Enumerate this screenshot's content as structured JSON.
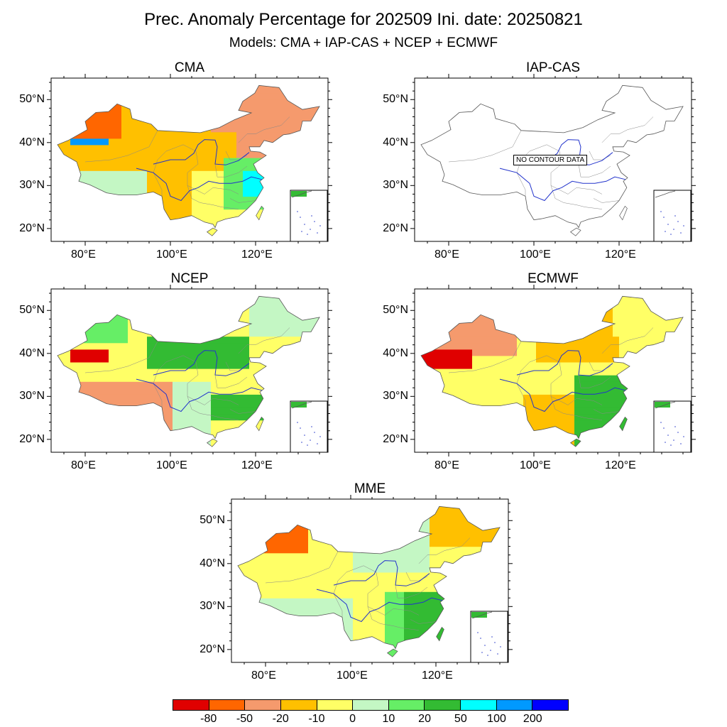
{
  "title": "Prec. Anomaly Percentage for 202509 Ini. date: 20250821",
  "subtitle": "Models: CMA + IAP-CAS + NCEP + ECMWF",
  "axes": {
    "lat_labels": [
      "50°N",
      "40°N",
      "30°N",
      "20°N"
    ],
    "lon_labels": [
      "80°E",
      "100°E",
      "120°E"
    ]
  },
  "panels": [
    {
      "id": "cma",
      "title": "CMA",
      "scheme": "dry-west-wet-east"
    },
    {
      "id": "iap",
      "title": "IAP-CAS",
      "scheme": "none",
      "note": "NO CONTOUR DATA"
    },
    {
      "id": "ncep",
      "title": "NCEP",
      "scheme": "wet-north"
    },
    {
      "id": "ecmwf",
      "title": "ECMWF",
      "scheme": "dry-northwest-wet-southeast"
    },
    {
      "id": "mme",
      "title": "MME",
      "scheme": "ensemble"
    }
  ],
  "colorbar": {
    "labels": [
      "-80",
      "-50",
      "-20",
      "-10",
      "0",
      "10",
      "20",
      "50",
      "100",
      "200"
    ],
    "colors": [
      "#e00000",
      "#ff6600",
      "#f59a6d",
      "#ffc000",
      "#ffff66",
      "#c4f7c4",
      "#66ee66",
      "#33bb33",
      "#00ffff",
      "#0099ff",
      "#0000ff"
    ]
  }
}
